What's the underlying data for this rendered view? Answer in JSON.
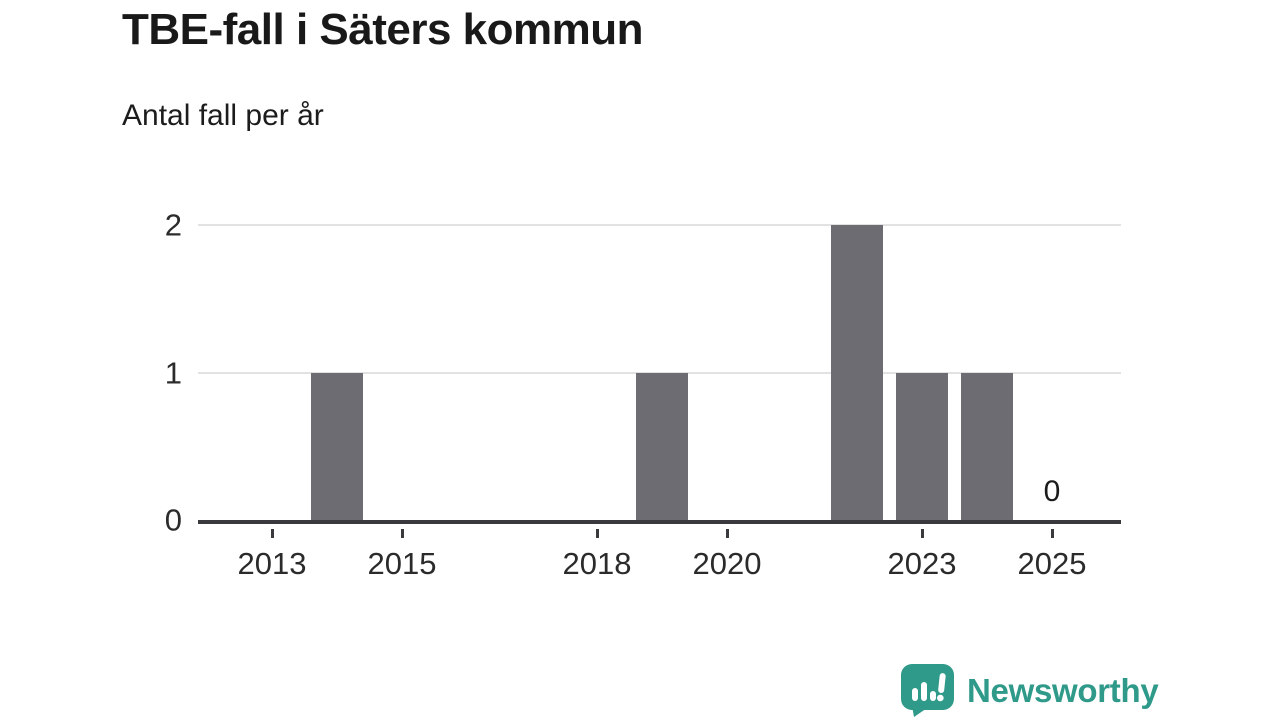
{
  "header": {
    "title": "TBE-fall i Säters kommun",
    "subtitle": "Antal fall per år"
  },
  "chart_data": {
    "type": "bar",
    "title": "TBE-fall i Säters kommun",
    "subtitle": "Antal fall per år",
    "categories": [
      "2013",
      "2014",
      "2015",
      "2016",
      "2017",
      "2018",
      "2019",
      "2020",
      "2021",
      "2022",
      "2023",
      "2024",
      "2025"
    ],
    "values": [
      0,
      1,
      0,
      0,
      0,
      0,
      1,
      0,
      0,
      2,
      1,
      1,
      0
    ],
    "xlabel": "",
    "ylabel": "Antal fall per år",
    "ylim": [
      0,
      2
    ],
    "yticks": [
      0,
      1,
      2
    ],
    "xtick_labels": [
      "2013",
      "2015",
      "2018",
      "2020",
      "2023",
      "2025"
    ],
    "grid": "horizontal",
    "legend": "none",
    "bar_color": "#6C6C72",
    "axis_color": "#3A3A3E",
    "gridline_color": "#E2E2E2",
    "annotations": [
      {
        "category": "2025",
        "text": "0"
      }
    ]
  },
  "footer": {
    "brand": "Newsworthy",
    "brand_color": "#2F9A89",
    "logo_icon": "bar-chart-speech-bubble-icon"
  }
}
